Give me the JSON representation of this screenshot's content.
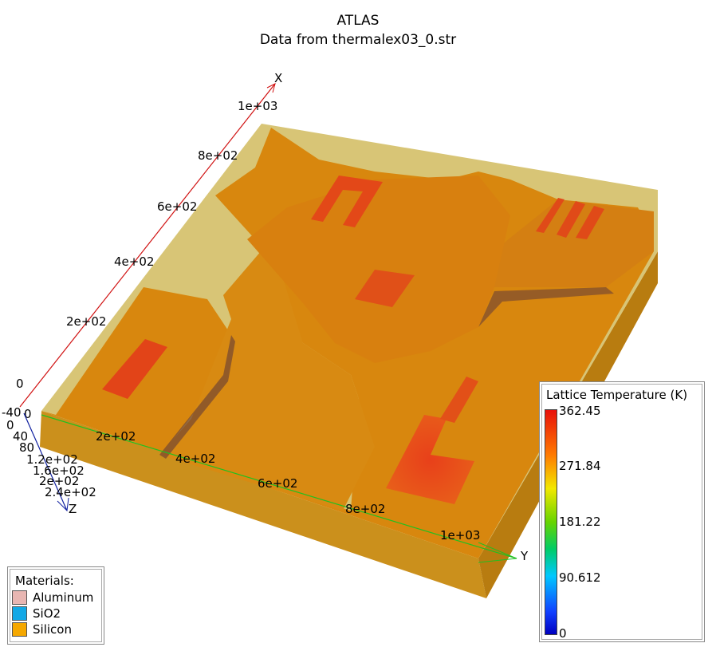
{
  "title": {
    "line1": "ATLAS",
    "line2": "Data from thermalex03_0.str"
  },
  "axes": {
    "x_name": "X",
    "y_name": "Y",
    "z_name": "Z",
    "x_ticks": [
      "1e+03",
      "8e+02",
      "6e+02",
      "4e+02",
      "2e+02",
      "0"
    ],
    "y_ticks": [
      "0",
      "2e+02",
      "4e+02",
      "6e+02",
      "8e+02",
      "1e+03"
    ],
    "z_ticks": [
      "-40",
      "0",
      "40",
      "80",
      "1.2e+02",
      "1.6e+02",
      "2e+02",
      "2.4e+02"
    ]
  },
  "materials": {
    "heading": "Materials:",
    "items": [
      {
        "name": "Aluminum",
        "color": "#e8b6b2"
      },
      {
        "name": "SiO2",
        "color": "#12a8e6"
      },
      {
        "name": "Silicon",
        "color": "#f5a800"
      }
    ]
  },
  "legend": {
    "title": "Lattice Temperature (K)",
    "ticks": [
      "362.45",
      "271.84",
      "181.22",
      "90.612",
      "0"
    ]
  },
  "colors": {
    "silicon": "#d88a12",
    "box_top_edge": "#d9c879",
    "hot_region": "#e0481a",
    "x_axis": "#d01010",
    "y_axis": "#20c020",
    "z_axis": "#1020a0"
  }
}
